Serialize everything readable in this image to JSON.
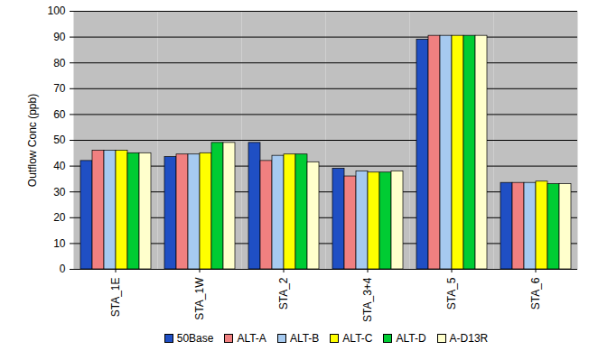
{
  "chart_data": {
    "type": "bar",
    "y_label": "Outflow Conc (ppb)",
    "categories": [
      "STA_1E",
      "STA_1W",
      "STA_2",
      "STA_3+4",
      "STA_5",
      "STA_6"
    ],
    "series": [
      {
        "name": "50Base",
        "color": "#1f4fc4",
        "values": [
          42,
          43.5,
          49,
          39,
          89,
          33.5
        ]
      },
      {
        "name": "ALT-A",
        "color": "#f08080",
        "values": [
          46,
          44.5,
          42,
          36,
          90.5,
          33.5
        ]
      },
      {
        "name": "ALT-B",
        "color": "#a6caf0",
        "values": [
          46,
          44.5,
          44,
          38,
          90.5,
          33.5
        ]
      },
      {
        "name": "ALT-C",
        "color": "#ffff00",
        "values": [
          46,
          45,
          44.5,
          37.5,
          90.5,
          34
        ]
      },
      {
        "name": "ALT-D",
        "color": "#00cc33",
        "values": [
          45,
          49,
          44.5,
          37.5,
          90.5,
          33
        ]
      },
      {
        "name": "A-D13R",
        "color": "#ffffcc",
        "values": [
          45,
          49,
          41.5,
          38,
          90.5,
          33
        ]
      }
    ],
    "ylim": [
      0,
      100
    ],
    "yticks": [
      0,
      10,
      20,
      30,
      40,
      50,
      60,
      70,
      80,
      90,
      100
    ],
    "grid": true,
    "legend": "bottom",
    "data_labels": false
  }
}
